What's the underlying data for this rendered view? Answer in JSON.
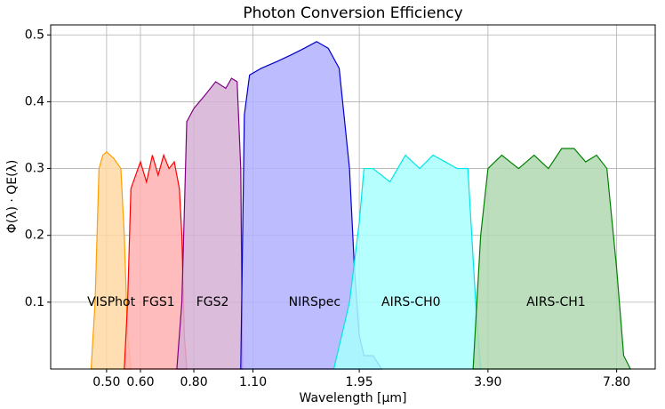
{
  "chart_data": {
    "type": "area",
    "title": "Photon Conversion Efficiency",
    "xlabel": "Wavelength [μm]",
    "ylabel": "Φ(λ) · QE(λ)",
    "xscale": "log",
    "xlim": [
      0.37,
      9.6
    ],
    "ylim": [
      0,
      0.515
    ],
    "xticks": [
      {
        "value": 0.5,
        "label": "0.50"
      },
      {
        "value": 0.6,
        "label": "0.60"
      },
      {
        "value": 0.8,
        "label": "0.80"
      },
      {
        "value": 1.1,
        "label": "1.10"
      },
      1.95,
      {
        "value": 3.9,
        "label": "3.90"
      },
      {
        "value": 7.8,
        "label": "7.80"
      }
    ],
    "yticks": [
      0.1,
      0.2,
      0.3,
      0.4,
      0.5
    ],
    "grid": true,
    "series": [
      {
        "name": "VISPhot",
        "color": "#ff9f00",
        "fill": "#ffd9a3",
        "x": [
          0.46,
          0.47,
          0.48,
          0.49,
          0.5,
          0.52,
          0.54,
          0.55,
          0.56,
          0.57
        ],
        "values": [
          0,
          0.1,
          0.3,
          0.32,
          0.325,
          0.315,
          0.3,
          0.2,
          0.05,
          0
        ]
      },
      {
        "name": "FGS1",
        "color": "#ff0000",
        "fill": "#ffb0b0",
        "x": [
          0.55,
          0.56,
          0.57,
          0.6,
          0.62,
          0.64,
          0.66,
          0.68,
          0.7,
          0.72,
          0.74,
          0.75,
          0.76,
          0.77
        ],
        "values": [
          0,
          0.1,
          0.27,
          0.31,
          0.28,
          0.32,
          0.29,
          0.32,
          0.3,
          0.31,
          0.27,
          0.2,
          0.05,
          0
        ]
      },
      {
        "name": "FGS2",
        "color": "#800080",
        "fill": "#d5b0d5",
        "x": [
          0.73,
          0.75,
          0.77,
          0.8,
          0.85,
          0.9,
          0.95,
          0.98,
          1.01,
          1.03,
          1.04
        ],
        "values": [
          0,
          0.1,
          0.37,
          0.39,
          0.41,
          0.43,
          0.42,
          0.435,
          0.43,
          0.3,
          0
        ]
      },
      {
        "name": "NIRSpec",
        "color": "#0000cc",
        "fill": "#b0b0ff",
        "x": [
          1.03,
          1.05,
          1.08,
          1.15,
          1.25,
          1.35,
          1.45,
          1.55,
          1.65,
          1.75,
          1.85,
          1.9,
          1.95,
          2.0,
          2.1,
          2.2
        ],
        "values": [
          0,
          0.38,
          0.44,
          0.45,
          0.46,
          0.47,
          0.48,
          0.49,
          0.48,
          0.45,
          0.3,
          0.15,
          0.05,
          0.02,
          0.02,
          0
        ]
      },
      {
        "name": "AIRS-CH0",
        "color": "#00e5e5",
        "fill": "#a8ffff",
        "x": [
          1.7,
          1.85,
          1.95,
          2.0,
          2.1,
          2.3,
          2.5,
          2.7,
          2.9,
          3.1,
          3.3,
          3.5,
          3.65,
          3.75
        ],
        "values": [
          0,
          0.1,
          0.22,
          0.3,
          0.3,
          0.28,
          0.32,
          0.3,
          0.32,
          0.31,
          0.3,
          0.3,
          0.1,
          0
        ]
      },
      {
        "name": "AIRS-CH1",
        "color": "#008000",
        "fill": "#b0d8b0",
        "x": [
          3.6,
          3.75,
          3.9,
          4.2,
          4.6,
          5.0,
          5.4,
          5.8,
          6.2,
          6.6,
          7.0,
          7.4,
          7.8,
          8.1,
          8.4
        ],
        "values": [
          0,
          0.2,
          0.3,
          0.32,
          0.3,
          0.32,
          0.3,
          0.33,
          0.33,
          0.31,
          0.32,
          0.3,
          0.15,
          0.02,
          0
        ]
      }
    ]
  }
}
